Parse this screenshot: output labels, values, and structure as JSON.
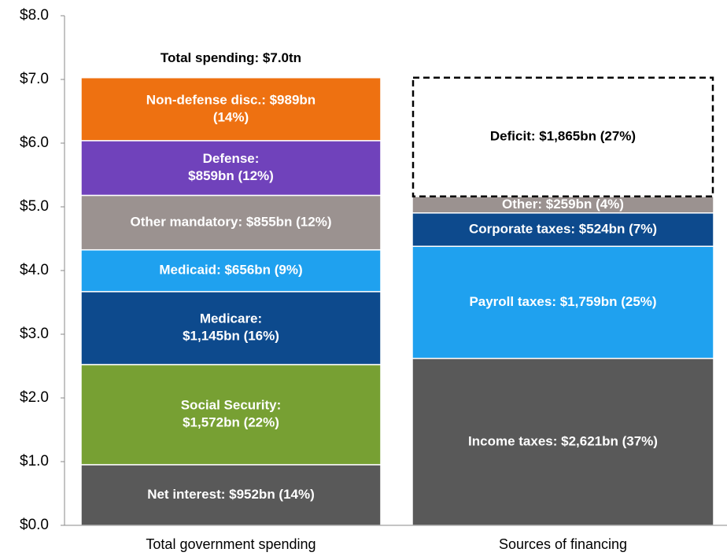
{
  "chart_data": {
    "type": "stacked-bar",
    "ylim": [
      0,
      8
    ],
    "yticks": [
      {
        "value": 0,
        "label": "$0.0"
      },
      {
        "value": 1,
        "label": "$1.0"
      },
      {
        "value": 2,
        "label": "$2.0"
      },
      {
        "value": 3,
        "label": "$3.0"
      },
      {
        "value": 4,
        "label": "$4.0"
      },
      {
        "value": 5,
        "label": "$5.0"
      },
      {
        "value": 6,
        "label": "$6.0"
      },
      {
        "value": 7,
        "label": "$7.0"
      },
      {
        "value": 8,
        "label": "$8.0"
      }
    ],
    "annotations": [
      "Total spending: $7.0tn"
    ],
    "stacks": [
      {
        "name": "Total government spending",
        "segments": [
          {
            "value": 0.952,
            "value_label": [
              "Net interest: $952bn (14%)"
            ],
            "color": "#595959"
          },
          {
            "value": 1.572,
            "value_label": [
              "Social Security:",
              "$1,572bn (22%)"
            ],
            "color": "#77a033"
          },
          {
            "value": 1.145,
            "value_label": [
              "Medicare:",
              "$1,145bn (16%)"
            ],
            "color": "#0d4a8d"
          },
          {
            "value": 0.656,
            "value_label": [
              "Medicaid: $656bn (9%)"
            ],
            "color": "#1fa1ef"
          },
          {
            "value": 0.855,
            "value_label": [
              "Other mandatory: $855bn (12%)"
            ],
            "color": "#9b9290"
          },
          {
            "value": 0.859,
            "value_label": [
              "Defense:",
              "$859bn (12%)"
            ],
            "color": "#7042bb"
          },
          {
            "value": 0.989,
            "value_label": [
              "Non-defense disc.: $989bn",
              "(14%)"
            ],
            "color": "#ee7111"
          }
        ]
      },
      {
        "name": "Sources of financing",
        "segments": [
          {
            "value": 2.621,
            "value_label": [
              "Income taxes: $2,621bn (37%)"
            ],
            "color": "#595959"
          },
          {
            "value": 1.759,
            "value_label": [
              "Payroll taxes: $1,759bn (25%)"
            ],
            "color": "#1fa1ef"
          },
          {
            "value": 0.524,
            "value_label": [
              "Corporate taxes: $524bn (7%)"
            ],
            "color": "#0d4a8d"
          },
          {
            "value": 0.259,
            "value_label": [
              "Other: $259bn (4%)"
            ],
            "color": "#9b9290"
          },
          {
            "value": 1.865,
            "value_label": [
              "Deficit: $1,865bn (27%)"
            ],
            "color": "#ffffff",
            "dashed": true
          }
        ]
      }
    ]
  }
}
